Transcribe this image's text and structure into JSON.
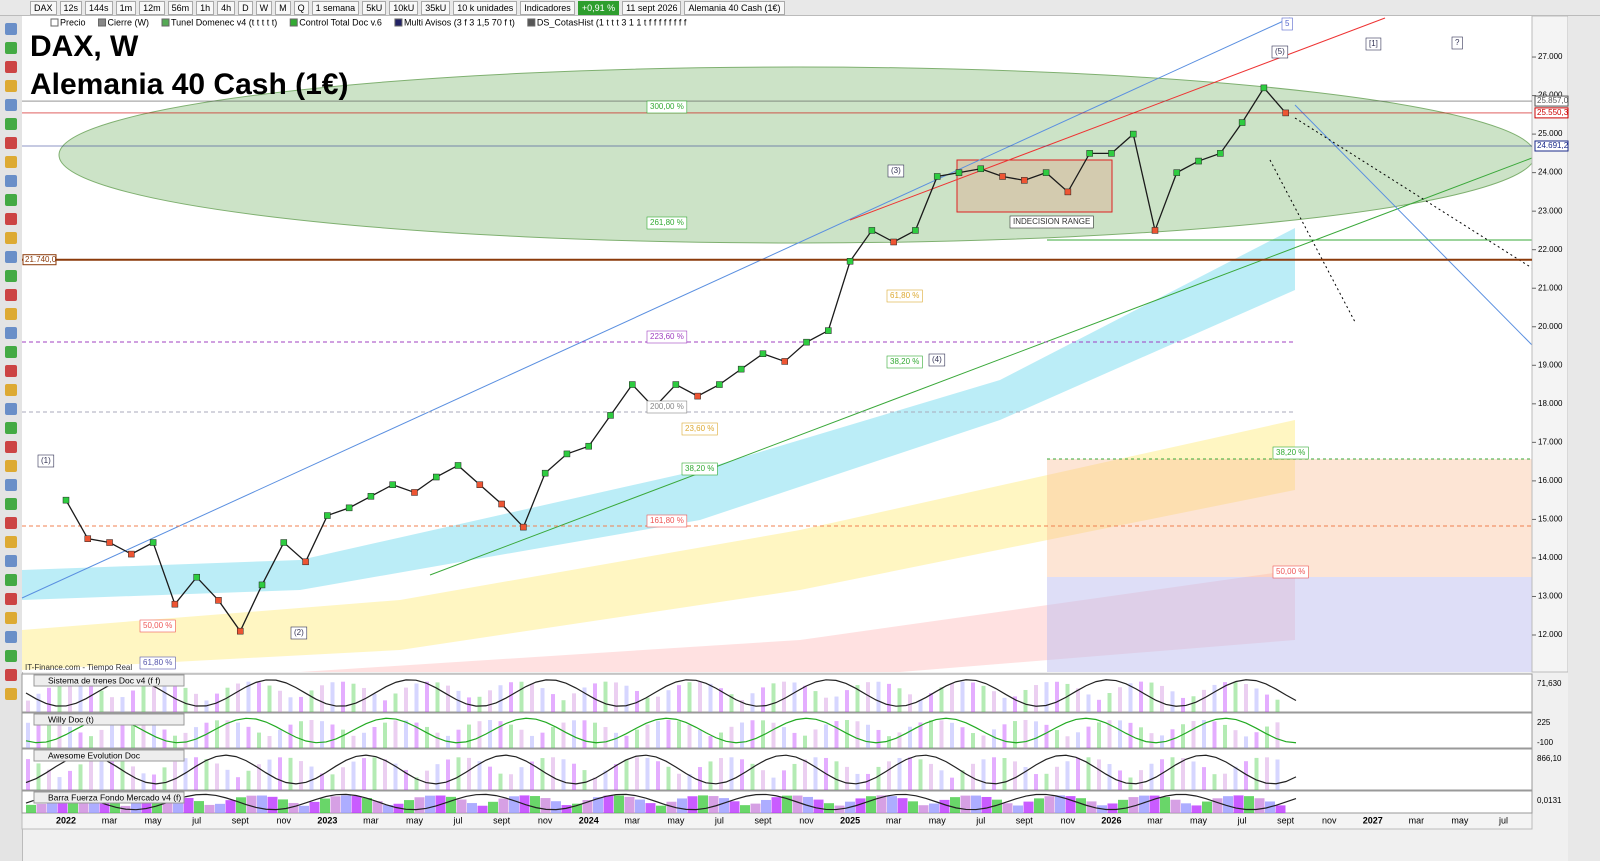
{
  "toolbar": {
    "items": [
      "DAX",
      "12s",
      "144s",
      "1m",
      "12m",
      "56m",
      "1h",
      "4h",
      "D",
      "W",
      "M",
      "Q",
      "1 semana",
      "5kU",
      "10kU",
      "35kU",
      "10 k unidades",
      "Indicadores"
    ],
    "change": "+0,91 %",
    "date": "11 sept 2026",
    "instrument": "Alemania 40 Cash (1€)"
  },
  "indicator_legend": [
    "Precio",
    "Cierre (W)",
    "Tunel Domenec v4 (t t t t t)",
    "Control Total Doc v.6",
    "Multi Avisos (3 f 3 1,5 70 f t)",
    "DS_CotasHist (1 t t t 3 1 1 t f f f f f f f f"
  ],
  "chart_data": {
    "type": "line",
    "title": "DAX, W",
    "subtitle": "Alemania 40 Cash (1€)",
    "color": "#1a1a1a",
    "x": [
      "2022-01",
      "2022-02",
      "2022-03",
      "2022-04",
      "2022-05",
      "2022-06",
      "2022-07",
      "2022-08",
      "2022-09",
      "2022-10",
      "2022-11",
      "2022-12",
      "2023-01",
      "2023-02",
      "2023-03",
      "2023-04",
      "2023-05",
      "2023-06",
      "2023-07",
      "2023-08",
      "2023-09",
      "2023-10",
      "2023-11",
      "2023-12",
      "2024-01",
      "2024-02",
      "2024-03",
      "2024-04",
      "2024-05",
      "2024-06",
      "2024-07",
      "2024-08",
      "2024-09",
      "2024-10",
      "2024-11",
      "2024-12",
      "2025-01",
      "2025-02",
      "2025-03",
      "2025-04",
      "2025-05",
      "2025-06",
      "2025-07",
      "2025-08",
      "2025-09",
      "2025-10",
      "2025-11",
      "2025-12",
      "2026-01",
      "2026-02",
      "2026-03",
      "2026-04",
      "2026-05",
      "2026-06",
      "2026-07",
      "2026-08",
      "2026-09"
    ],
    "values": [
      15500,
      14500,
      14400,
      14100,
      14400,
      12800,
      13500,
      12900,
      12100,
      13300,
      14400,
      13900,
      15100,
      15300,
      15600,
      15900,
      15700,
      16100,
      16400,
      15900,
      15400,
      14800,
      16200,
      16700,
      16900,
      17700,
      18500,
      17900,
      18500,
      18200,
      18500,
      18900,
      19300,
      19100,
      19600,
      19900,
      21700,
      22500,
      22200,
      22500,
      23900,
      24000,
      24100,
      23900,
      23800,
      24000,
      23500,
      24500,
      24500,
      25000,
      22500,
      24000,
      24300,
      24500,
      25300,
      26200,
      25550
    ],
    "ylim": [
      11040,
      28065
    ],
    "yticks": [
      {
        "value": 12000,
        "label": "12.000"
      },
      {
        "value": 13000,
        "label": "13.000"
      },
      {
        "value": 14000,
        "label": "14.000"
      },
      {
        "value": 15000,
        "label": "15.000"
      },
      {
        "value": 16000,
        "label": "16.000"
      },
      {
        "value": 17000,
        "label": "17.000"
      },
      {
        "value": 18000,
        "label": "18.000"
      },
      {
        "value": 19000,
        "label": "19.000"
      },
      {
        "value": 20000,
        "label": "20.000"
      },
      {
        "value": 21000,
        "label": "21.000"
      },
      {
        "value": 22000,
        "label": "22.000"
      },
      {
        "value": 23000,
        "label": "23.000"
      },
      {
        "value": 24000,
        "label": "24.000"
      },
      {
        "value": 25000,
        "label": "25.000"
      },
      {
        "value": 26000,
        "label": "26.000"
      },
      {
        "value": 27000,
        "label": "27.000"
      }
    ],
    "x_axis_labels": [
      "2022",
      "mar",
      "may",
      "jul",
      "sept",
      "nov",
      "2023",
      "mar",
      "may",
      "jul",
      "sept",
      "nov",
      "2024",
      "mar",
      "may",
      "jul",
      "sept",
      "nov",
      "2025",
      "mar",
      "may",
      "jul",
      "sept",
      "nov",
      "2026",
      "mar",
      "may",
      "jul",
      "sept",
      "nov",
      "2027",
      "mar",
      "may",
      "jul"
    ],
    "price_labels": [
      {
        "value": 25857,
        "label": "25.857,0",
        "color": "#555"
      },
      {
        "value": 25550.3,
        "label": "25.550,3",
        "color": "#c00"
      },
      {
        "value": 24691.2,
        "label": "24.691,2",
        "color": "#1a2a8a"
      },
      {
        "value": 21740,
        "label": "21.740,0",
        "color": "#8b3a0a"
      }
    ],
    "annotations": [
      "300,00 %",
      "261,80 %",
      "223,60 %",
      "200,00 %",
      "161,80 %",
      "38,20 %",
      "38,20 %",
      "38,20 %",
      "50,00 %",
      "50,00 %",
      "61,80 %",
      "23,60 %",
      "61,80 %",
      "INDECISION RANGE",
      "(1)",
      "(2)",
      "(3)",
      "(4)",
      "(5)",
      "[1]",
      "?",
      "5",
      "IT-Finance.com - Tiempo Real"
    ]
  },
  "panels": [
    {
      "title": "Sistema de trenes Doc v4 (f f)",
      "value": "71,630"
    },
    {
      "title": "Willy Doc (t)",
      "value": "225",
      "value2": "-100"
    },
    {
      "title": "Awesome Evolution Doc",
      "value": "866,10"
    },
    {
      "title": "Barra Fuerza Fondo Mercado v4 (f)",
      "value": "0,0131"
    }
  ]
}
